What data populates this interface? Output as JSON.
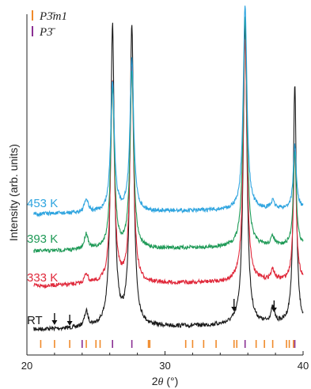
{
  "chart_data": {
    "type": "line",
    "xlabel_main": "2",
    "xlabel_var": "θ",
    "xlabel_unit": " (°)",
    "ylabel": "Intensity (arb. units)",
    "xlim": [
      20,
      40
    ],
    "xticks": [
      "20",
      "30",
      "40"
    ],
    "legend": [
      {
        "label": "P3̄m1",
        "color": "#f08a2a"
      },
      {
        "label": "P3̄",
        "color": "#8a2f93"
      }
    ],
    "peaks": [
      {
        "pos": 24.3,
        "rel": [
          0.05,
          0.04,
          0.07,
          0.07
        ]
      },
      {
        "pos": 26.2,
        "rel": [
          1.0,
          0.78,
          0.72,
          0.7
        ]
      },
      {
        "pos": 27.6,
        "rel": [
          1.0,
          0.82,
          0.79,
          0.82
        ]
      },
      {
        "pos": 35.8,
        "rel": [
          1.0,
          0.93,
          1.03,
          1.1
        ]
      },
      {
        "pos": 37.8,
        "rel": [
          0.05,
          0.04,
          0.04,
          0.04
        ]
      },
      {
        "pos": 39.4,
        "rel": [
          0.8,
          0.5,
          0.42,
          0.34
        ]
      }
    ],
    "series": [
      {
        "name": "RT",
        "color": "#1a1a1a"
      },
      {
        "name": "333 K",
        "color": "#e0283a"
      },
      {
        "name": "393 K",
        "color": "#1f9a57"
      },
      {
        "name": "453 K",
        "color": "#2ea4df"
      }
    ],
    "arrows_x": [
      22.0,
      23.1,
      35.0,
      37.9
    ],
    "ticks_P3m1": [
      21.0,
      22.0,
      23.1,
      24.3,
      25.0,
      25.3,
      28.8,
      28.9,
      31.5,
      32.0,
      32.8,
      33.7,
      35.0,
      35.2,
      36.6,
      37.2,
      37.8,
      38.8,
      39.0,
      39.3
    ],
    "ticks_P3": [
      24.0,
      26.2,
      27.6,
      35.8,
      39.4
    ]
  }
}
